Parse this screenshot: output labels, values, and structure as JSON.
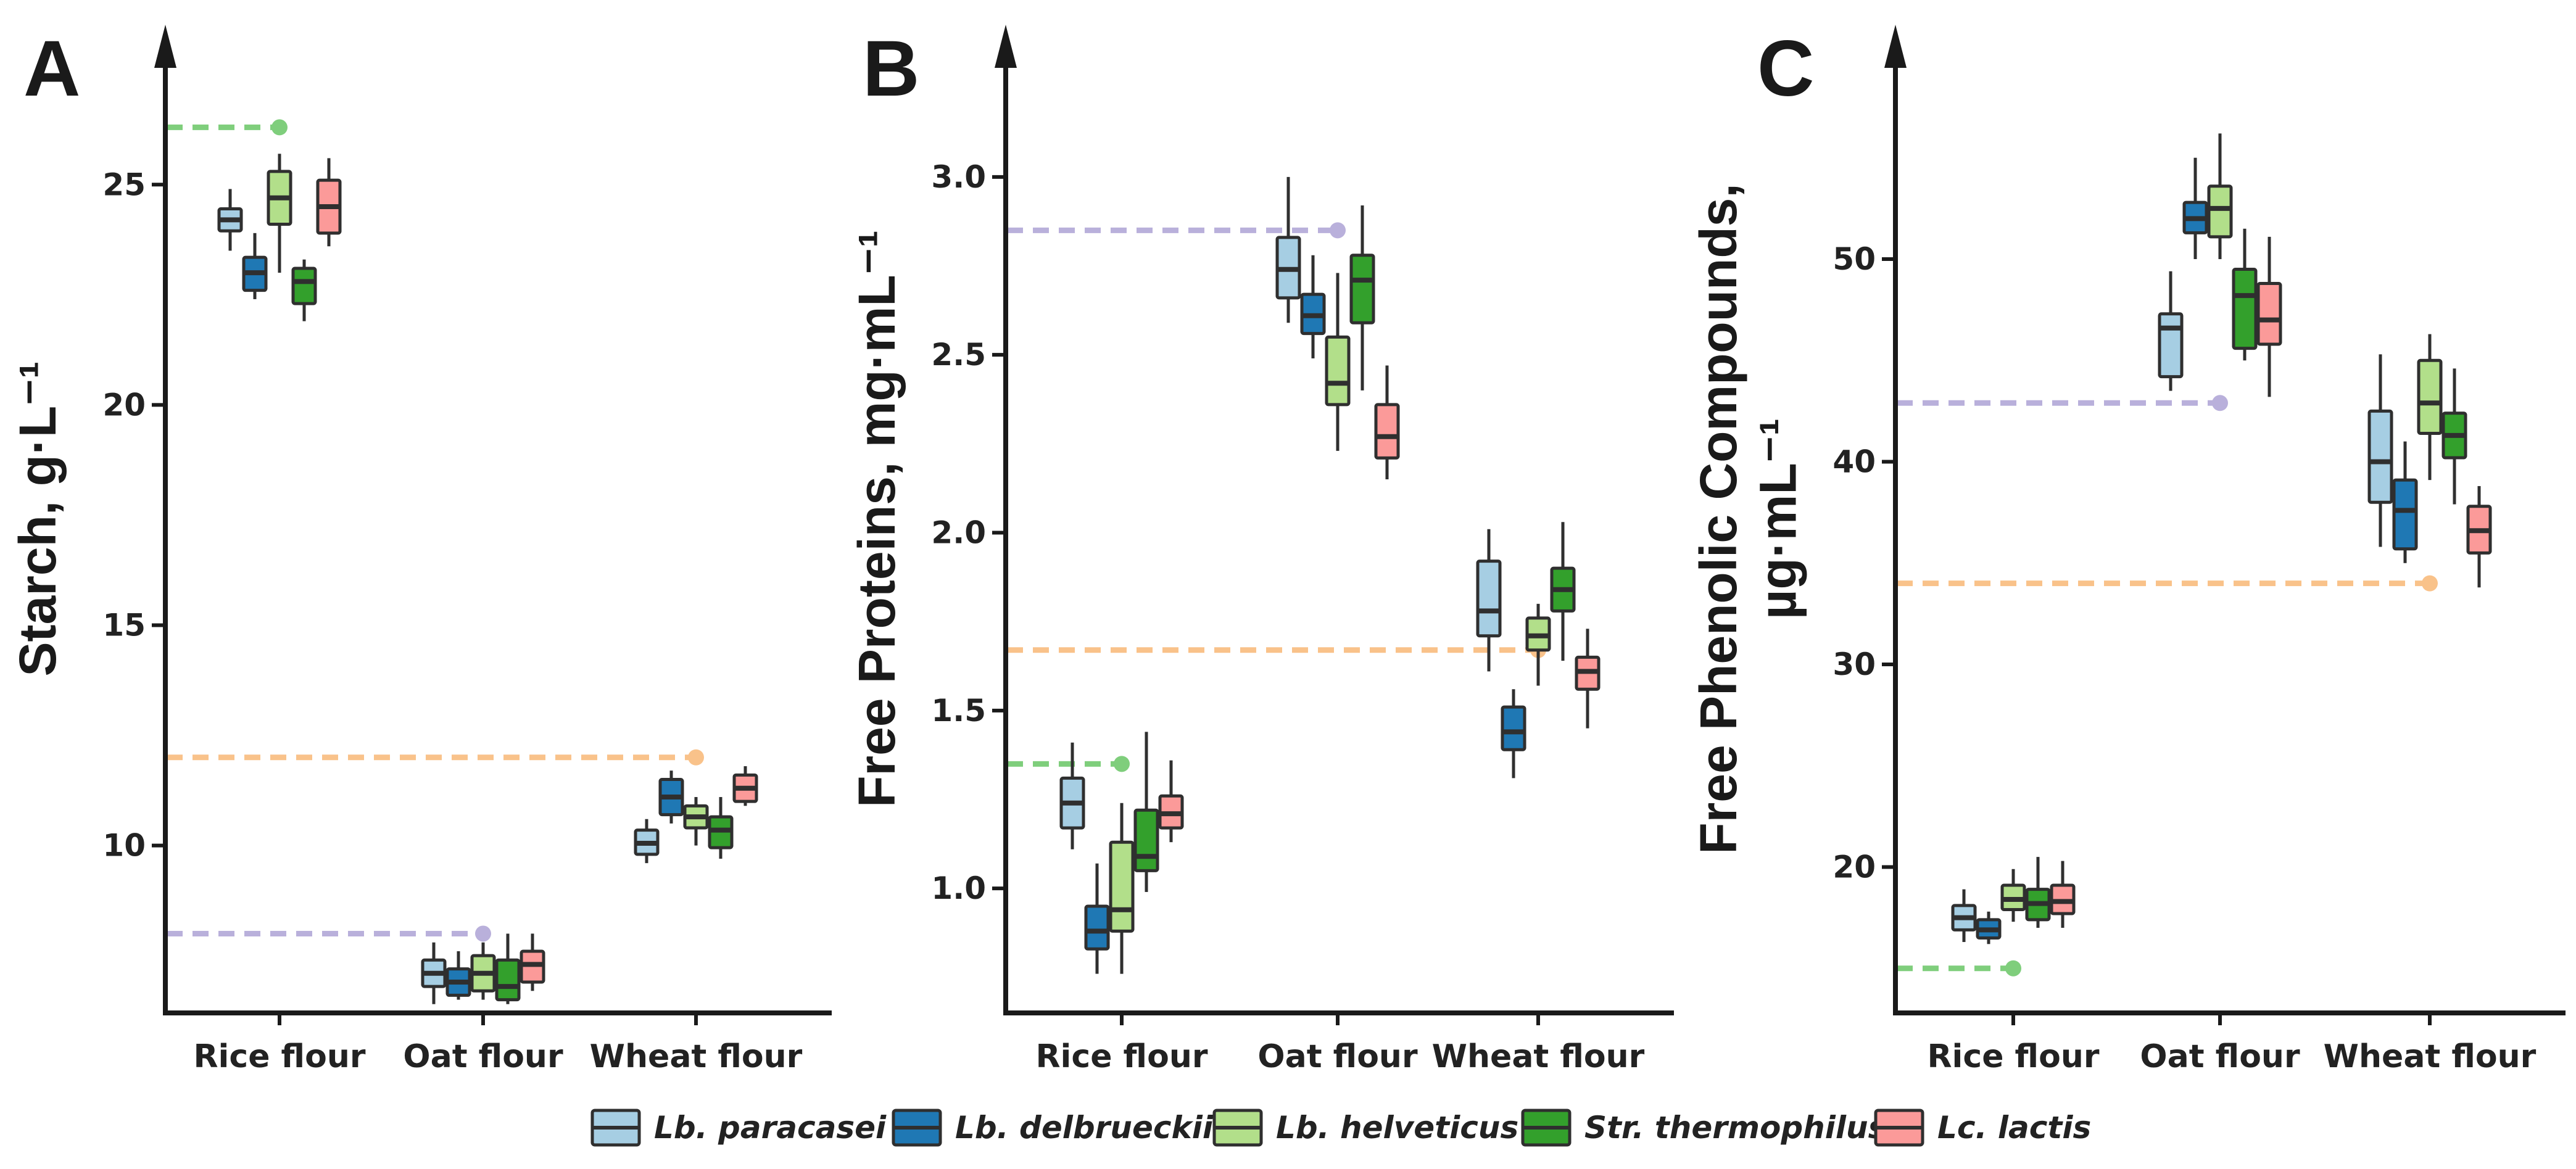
{
  "colors": {
    "axis": "#1a1a1a",
    "box_stroke": "#2f2f2f",
    "ref_green": "#7fce7c",
    "ref_orange": "#f9c28a",
    "ref_purple": "#b9b0db"
  },
  "legend": [
    {
      "label": "Lb. paracasei",
      "color": "#a6cee3"
    },
    {
      "label": "Lb. delbrueckii",
      "color": "#1f78b4"
    },
    {
      "label": "Lb. helveticus",
      "color": "#b2df8a"
    },
    {
      "label": "Str. thermophilus",
      "color": "#33a02c"
    },
    {
      "label": "Lc. lactis",
      "color": "#fb9a99"
    }
  ],
  "chart_data": [
    {
      "panel": "A",
      "type": "box",
      "ylabel": "Starch, g·L⁻¹",
      "ylim": [
        6.2,
        28.0
      ],
      "yticks": [
        10,
        15,
        20,
        25
      ],
      "categories": [
        "Rice flour",
        "Oat flour",
        "Wheat flour"
      ],
      "series": [
        {
          "name": "Lb. paracasei",
          "boxes": [
            {
              "min": 23.5,
              "q1": 23.95,
              "median": 24.2,
              "q3": 24.45,
              "max": 24.9
            },
            {
              "min": 6.4,
              "q1": 6.8,
              "median": 7.1,
              "q3": 7.4,
              "max": 7.8
            },
            {
              "min": 9.6,
              "q1": 9.8,
              "median": 10.05,
              "q3": 10.35,
              "max": 10.6
            }
          ]
        },
        {
          "name": "Lb. delbrueckii",
          "boxes": [
            {
              "min": 22.4,
              "q1": 22.6,
              "median": 23.0,
              "q3": 23.35,
              "max": 23.9
            },
            {
              "min": 6.5,
              "q1": 6.6,
              "median": 6.9,
              "q3": 7.2,
              "max": 7.6
            },
            {
              "min": 10.5,
              "q1": 10.7,
              "median": 11.1,
              "q3": 11.5,
              "max": 11.7
            }
          ]
        },
        {
          "name": "Lb. helveticus",
          "boxes": [
            {
              "min": 23.0,
              "q1": 24.1,
              "median": 24.7,
              "q3": 25.3,
              "max": 25.7
            },
            {
              "min": 6.5,
              "q1": 6.7,
              "median": 7.1,
              "q3": 7.5,
              "max": 7.8
            },
            {
              "min": 10.0,
              "q1": 10.4,
              "median": 10.65,
              "q3": 10.9,
              "max": 11.1
            }
          ]
        },
        {
          "name": "Str. thermophilus",
          "boxes": [
            {
              "min": 21.9,
              "q1": 22.3,
              "median": 22.8,
              "q3": 23.1,
              "max": 23.3
            },
            {
              "min": 6.4,
              "q1": 6.5,
              "median": 6.8,
              "q3": 7.4,
              "max": 8.0
            },
            {
              "min": 9.7,
              "q1": 9.95,
              "median": 10.35,
              "q3": 10.65,
              "max": 11.1
            }
          ]
        },
        {
          "name": "Lc. lactis",
          "boxes": [
            {
              "min": 23.6,
              "q1": 23.9,
              "median": 24.5,
              "q3": 25.1,
              "max": 25.6
            },
            {
              "min": 6.7,
              "q1": 6.9,
              "median": 7.3,
              "q3": 7.6,
              "max": 8.0
            },
            {
              "min": 10.9,
              "q1": 11.0,
              "median": 11.3,
              "q3": 11.6,
              "max": 11.8
            }
          ]
        }
      ],
      "reference_lines": [
        {
          "color": "ref_green",
          "value": 26.3,
          "category": "Rice flour"
        },
        {
          "color": "ref_orange",
          "value": 12.0,
          "category": "Wheat flour"
        },
        {
          "color": "ref_purple",
          "value": 8.0,
          "category": "Oat flour"
        }
      ]
    },
    {
      "panel": "B",
      "type": "box",
      "ylabel": "Free Proteins, mg·mL⁻¹",
      "ylim": [
        0.65,
        3.35
      ],
      "yticks": [
        1.0,
        1.5,
        2.0,
        2.5,
        3.0
      ],
      "tick_format": "fixed1",
      "categories": [
        "Rice flour",
        "Oat flour",
        "Wheat flour"
      ],
      "series": [
        {
          "name": "Lb. paracasei",
          "boxes": [
            {
              "min": 1.11,
              "q1": 1.17,
              "median": 1.24,
              "q3": 1.31,
              "max": 1.41
            },
            {
              "min": 2.59,
              "q1": 2.66,
              "median": 2.74,
              "q3": 2.83,
              "max": 3.0
            },
            {
              "min": 1.61,
              "q1": 1.71,
              "median": 1.78,
              "q3": 1.92,
              "max": 2.01
            }
          ]
        },
        {
          "name": "Lb. delbrueckii",
          "boxes": [
            {
              "min": 0.76,
              "q1": 0.83,
              "median": 0.88,
              "q3": 0.95,
              "max": 1.07
            },
            {
              "min": 2.49,
              "q1": 2.56,
              "median": 2.61,
              "q3": 2.67,
              "max": 2.78
            },
            {
              "min": 1.31,
              "q1": 1.39,
              "median": 1.44,
              "q3": 1.51,
              "max": 1.56
            }
          ]
        },
        {
          "name": "Lb. helveticus",
          "boxes": [
            {
              "min": 0.76,
              "q1": 0.88,
              "median": 0.94,
              "q3": 1.13,
              "max": 1.24
            },
            {
              "min": 2.23,
              "q1": 2.36,
              "median": 2.42,
              "q3": 2.55,
              "max": 2.73
            },
            {
              "min": 1.57,
              "q1": 1.67,
              "median": 1.71,
              "q3": 1.76,
              "max": 1.8
            }
          ]
        },
        {
          "name": "Str. thermophilus",
          "boxes": [
            {
              "min": 0.99,
              "q1": 1.05,
              "median": 1.09,
              "q3": 1.22,
              "max": 1.44
            },
            {
              "min": 2.4,
              "q1": 2.59,
              "median": 2.71,
              "q3": 2.78,
              "max": 2.92
            },
            {
              "min": 1.64,
              "q1": 1.78,
              "median": 1.84,
              "q3": 1.9,
              "max": 2.03
            }
          ]
        },
        {
          "name": "Lc. lactis",
          "boxes": [
            {
              "min": 1.13,
              "q1": 1.17,
              "median": 1.21,
              "q3": 1.26,
              "max": 1.36
            },
            {
              "min": 2.15,
              "q1": 2.21,
              "median": 2.27,
              "q3": 2.36,
              "max": 2.47
            },
            {
              "min": 1.45,
              "q1": 1.56,
              "median": 1.61,
              "q3": 1.65,
              "max": 1.73
            }
          ]
        }
      ],
      "reference_lines": [
        {
          "color": "ref_purple",
          "value": 2.85,
          "category": "Oat flour"
        },
        {
          "color": "ref_orange",
          "value": 1.67,
          "category": "Wheat flour"
        },
        {
          "color": "ref_green",
          "value": 1.35,
          "category": "Rice flour"
        }
      ]
    },
    {
      "panel": "C",
      "type": "box",
      "ylabel": "Free Phenolic Compounds, µg·mL⁻¹",
      "ylabel_lines": [
        "Free Phenolic Compounds,",
        "µg·mL⁻¹"
      ],
      "ylim": [
        12.8,
        60.2
      ],
      "yticks": [
        20,
        30,
        40,
        50
      ],
      "categories": [
        "Rice flour",
        "Oat flour",
        "Wheat flour"
      ],
      "series": [
        {
          "name": "Lb. paracasei",
          "boxes": [
            {
              "min": 16.3,
              "q1": 16.9,
              "median": 17.5,
              "q3": 18.1,
              "max": 18.9
            },
            {
              "min": 43.5,
              "q1": 44.2,
              "median": 46.6,
              "q3": 47.3,
              "max": 49.4
            },
            {
              "min": 35.8,
              "q1": 38.0,
              "median": 40.0,
              "q3": 42.5,
              "max": 45.3
            }
          ]
        },
        {
          "name": "Lb. delbrueckii",
          "boxes": [
            {
              "min": 16.2,
              "q1": 16.5,
              "median": 16.9,
              "q3": 17.4,
              "max": 17.8
            },
            {
              "min": 50.0,
              "q1": 51.3,
              "median": 52.0,
              "q3": 52.8,
              "max": 55.0
            },
            {
              "min": 35.0,
              "q1": 35.7,
              "median": 37.6,
              "q3": 39.1,
              "max": 41.0
            }
          ]
        },
        {
          "name": "Lb. helveticus",
          "boxes": [
            {
              "min": 17.3,
              "q1": 17.9,
              "median": 18.4,
              "q3": 19.1,
              "max": 19.9
            },
            {
              "min": 50.0,
              "q1": 51.1,
              "median": 52.5,
              "q3": 53.6,
              "max": 56.2
            },
            {
              "min": 39.1,
              "q1": 41.4,
              "median": 42.9,
              "q3": 45.0,
              "max": 46.3
            }
          ]
        },
        {
          "name": "Str. thermophilus",
          "boxes": [
            {
              "min": 17.0,
              "q1": 17.4,
              "median": 18.2,
              "q3": 18.9,
              "max": 20.5
            },
            {
              "min": 45.0,
              "q1": 45.6,
              "median": 48.2,
              "q3": 49.5,
              "max": 51.5
            },
            {
              "min": 37.9,
              "q1": 40.2,
              "median": 41.3,
              "q3": 42.4,
              "max": 44.6
            }
          ]
        },
        {
          "name": "Lc. lactis",
          "boxes": [
            {
              "min": 17.0,
              "q1": 17.7,
              "median": 18.3,
              "q3": 19.1,
              "max": 20.3
            },
            {
              "min": 43.2,
              "q1": 45.8,
              "median": 47.0,
              "q3": 48.8,
              "max": 51.1
            },
            {
              "min": 33.8,
              "q1": 35.5,
              "median": 36.6,
              "q3": 37.8,
              "max": 38.8
            }
          ]
        }
      ],
      "reference_lines": [
        {
          "color": "ref_purple",
          "value": 42.9,
          "category": "Oat flour"
        },
        {
          "color": "ref_orange",
          "value": 34.0,
          "category": "Wheat flour"
        },
        {
          "color": "ref_green",
          "value": 15.0,
          "category": "Rice flour"
        }
      ]
    }
  ]
}
